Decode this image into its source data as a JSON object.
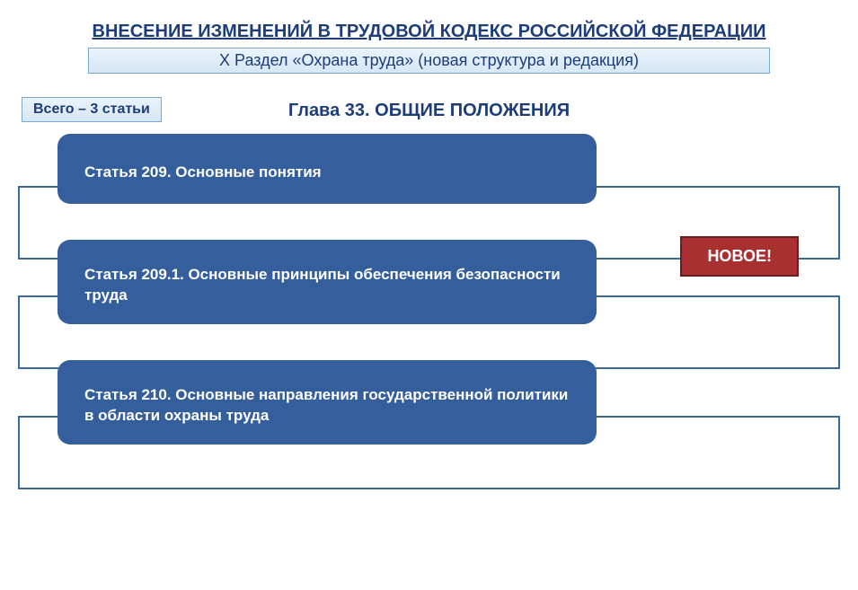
{
  "title": "ВНЕСЕНИЕ ИЗМЕНЕНИЙ В ТРУДОВОЙ КОДЕКС РОССИЙСКОЙ ФЕДЕРАЦИИ",
  "subtitle": "X Раздел «Охрана труда» (новая структура и редакция)",
  "count_label": "Всего – 3 статьи",
  "chapter": "Глава 33. ОБЩИЕ ПОЛОЖЕНИЯ",
  "articles": [
    {
      "text": "Статья 209. Основные понятия",
      "new_badge": null
    },
    {
      "text": "Статья 209.1. Основные принципы обеспечения безопасности труда",
      "new_badge": "НОВОЕ!"
    },
    {
      "text": "Статья 210. Основные направления государственной политики в области охраны труда",
      "new_badge": null
    }
  ],
  "colors": {
    "title_text": "#1c3d7a",
    "subtitle_bg_top": "#eaf3fb",
    "subtitle_bg_bottom": "#d6e7f5",
    "subtitle_border": "#7aa8d0",
    "card_bg": "#355f9c",
    "card_text": "#ffffff",
    "outline_border": "#3b6aa0",
    "badge_bg": "#a93030",
    "badge_border": "#6b1d1d",
    "background": "#ffffff"
  }
}
